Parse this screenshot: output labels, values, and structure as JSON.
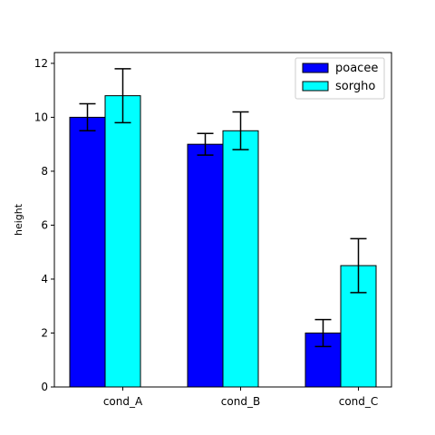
{
  "chart_data": {
    "type": "bar",
    "title": "",
    "xlabel": "",
    "ylabel": "height",
    "ylim": [
      0,
      12.4
    ],
    "yticks": [
      0,
      2,
      4,
      6,
      8,
      10,
      12
    ],
    "categories": [
      "cond_A",
      "cond_B",
      "cond_C"
    ],
    "series": [
      {
        "name": "poacee",
        "color": "#0000ff",
        "values": [
          10,
          9,
          2
        ],
        "errors": [
          0.5,
          0.4,
          0.5
        ]
      },
      {
        "name": "sorgho",
        "color": "#00ffff",
        "values": [
          10.8,
          9.5,
          4.5
        ],
        "errors": [
          1.0,
          0.7,
          1.0
        ]
      }
    ],
    "grid": false,
    "legend_position": "top-right"
  }
}
